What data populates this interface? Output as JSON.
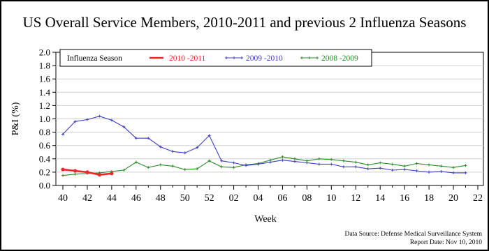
{
  "title": "US Overall Service Members, 2010-2011 and previous 2 Influenza Seasons",
  "source": {
    "line1": "Data Source: Defense Medical Surveillance System",
    "line2": "Report Date: Nov 10, 2010"
  },
  "colors": {
    "2010-2011": "#e8282b",
    "2009-2010": "#3f3fc0",
    "2008-2009": "#2a8a2a",
    "grid": "#d0d0d0",
    "axis": "#000000"
  },
  "chart_data": {
    "type": "line",
    "title": "US Overall Service Members, 2010-2011 and previous 2 Influenza Seasons",
    "xlabel": "Week",
    "ylabel": "P&I (%)",
    "ylim": [
      0.0,
      2.0
    ],
    "yticks": [
      "0.0",
      "0.2",
      "0.4",
      "0.6",
      "0.8",
      "1.0",
      "1.2",
      "1.4",
      "1.6",
      "1.8",
      "2.0"
    ],
    "xticks": [
      "40",
      "42",
      "44",
      "46",
      "48",
      "50",
      "52",
      "02",
      "04",
      "06",
      "08",
      "10",
      "12",
      "14",
      "16",
      "18",
      "20",
      "22"
    ],
    "weeks": [
      "40",
      "41",
      "42",
      "43",
      "44",
      "45",
      "46",
      "47",
      "48",
      "49",
      "50",
      "51",
      "52",
      "01",
      "02",
      "03",
      "04",
      "05",
      "06",
      "07",
      "08",
      "09",
      "10",
      "11",
      "12",
      "13",
      "14",
      "15",
      "16",
      "17",
      "18",
      "19",
      "20",
      "21",
      "22"
    ],
    "grid": "horizontal",
    "legend": {
      "title": "Influenza Season",
      "placement": "top",
      "entries": [
        "2010 -2011",
        "2009 -2010",
        "2008 -2009"
      ]
    },
    "series": [
      {
        "name": "2010 -2011",
        "color_key": "2010-2011",
        "values": [
          0.24,
          0.22,
          0.2,
          0.16,
          0.18
        ]
      },
      {
        "name": "2009 -2010",
        "color_key": "2009-2010",
        "values": [
          0.77,
          0.96,
          0.99,
          1.04,
          0.98,
          0.88,
          0.71,
          0.71,
          0.58,
          0.51,
          0.49,
          0.57,
          0.75,
          0.37,
          0.34,
          0.3,
          0.32,
          0.35,
          0.38,
          0.36,
          0.34,
          0.32,
          0.32,
          0.28,
          0.28,
          0.25,
          0.26,
          0.23,
          0.24,
          0.22,
          0.2,
          0.21,
          0.19,
          0.19
        ]
      },
      {
        "name": "2008 -2009",
        "color_key": "2008-2009",
        "values": [
          0.15,
          0.17,
          0.18,
          0.19,
          0.21,
          0.23,
          0.35,
          0.27,
          0.31,
          0.29,
          0.24,
          0.25,
          0.37,
          0.28,
          0.27,
          0.31,
          0.33,
          0.38,
          0.43,
          0.4,
          0.37,
          0.4,
          0.39,
          0.37,
          0.35,
          0.31,
          0.34,
          0.32,
          0.29,
          0.33,
          0.31,
          0.29,
          0.27,
          0.3
        ]
      }
    ]
  }
}
